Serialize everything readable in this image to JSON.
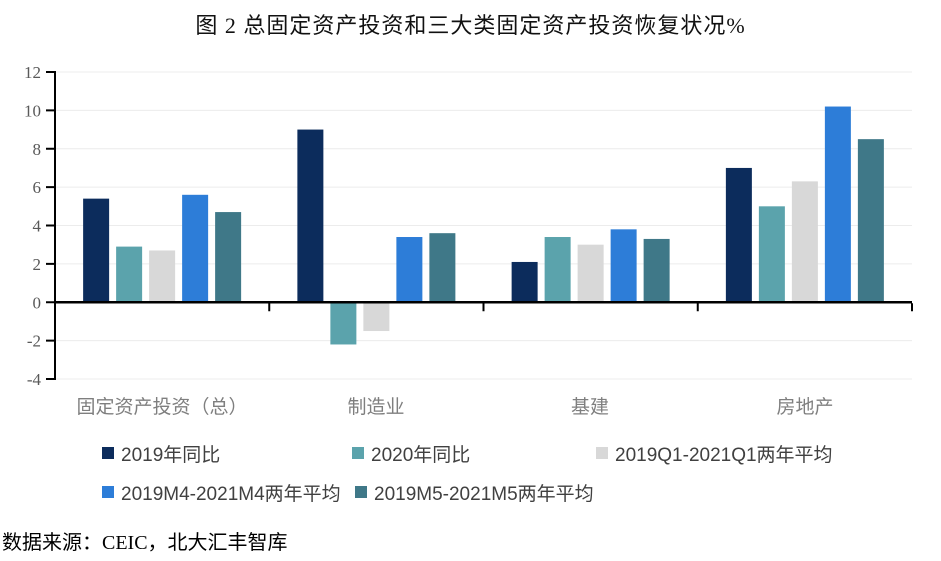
{
  "page": {
    "source_note": "数据来源：CEIC，北大汇丰智库"
  },
  "chart_data": {
    "type": "bar",
    "title": "图 2 总固定资产投资和三大类固定资产投资恢复状况%",
    "categories": [
      "固定资产投资（总）",
      "制造业",
      "基建",
      "房地产"
    ],
    "series": [
      {
        "name": "2019年同比",
        "color": "#0c2c5c",
        "values": [
          5.4,
          9.0,
          2.1,
          7.0
        ]
      },
      {
        "name": "2020年同比",
        "color": "#5ba3ac",
        "values": [
          2.9,
          -2.2,
          3.4,
          5.0
        ]
      },
      {
        "name": "2019Q1-2021Q1两年平均",
        "color": "#d8d8d8",
        "values": [
          2.7,
          -1.5,
          3.0,
          6.3
        ]
      },
      {
        "name": "2019M4-2021M4两年平均",
        "color": "#2d7dd8",
        "values": [
          5.6,
          3.4,
          3.8,
          10.2
        ]
      },
      {
        "name": "2019M5-2021M5两年平均",
        "color": "#3f7888",
        "values": [
          4.7,
          3.6,
          3.3,
          8.5
        ]
      }
    ],
    "ylim": [
      -4,
      12
    ],
    "ytick_step": 2,
    "yticks": [
      -4,
      -2,
      0,
      2,
      4,
      6,
      8,
      10,
      12
    ],
    "grid": true,
    "legend_position": "bottom",
    "axis_color": "#000000",
    "gridline_color": "#ececec",
    "tick_label_color": "#595959",
    "category_label_color": "#7f7f7f"
  }
}
